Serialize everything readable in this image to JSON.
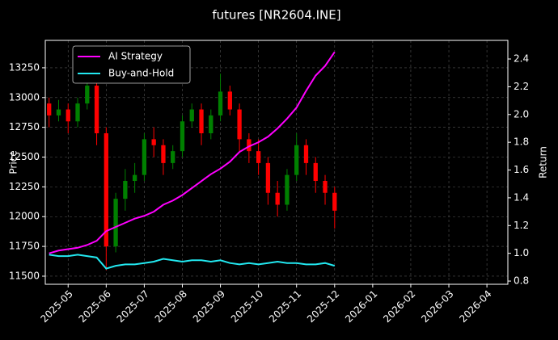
{
  "chart_data": {
    "type": "candlestick",
    "title": "futures [NR2604.INE]",
    "y_label": "Price",
    "y2_label": "Return",
    "background": "#000000",
    "grid": true,
    "legend": "upper left",
    "xlim": [
      -0.6,
      11.55
    ],
    "xticks": [
      {
        "value": 0,
        "label": "2025-05"
      },
      {
        "value": 1,
        "label": "2025-06"
      },
      {
        "value": 2,
        "label": "2025-07"
      },
      {
        "value": 3,
        "label": "2025-08"
      },
      {
        "value": 4,
        "label": "2025-09"
      },
      {
        "value": 5,
        "label": "2025-10"
      },
      {
        "value": 6,
        "label": "2025-11"
      },
      {
        "value": 7,
        "label": "2025-12"
      },
      {
        "value": 8,
        "label": "2026-01"
      },
      {
        "value": 9,
        "label": "2026-02"
      },
      {
        "value": 10,
        "label": "2026-03"
      },
      {
        "value": 11,
        "label": "2026-04"
      }
    ],
    "ylim": [
      11432,
      13480
    ],
    "yticks": [
      11500,
      11750,
      12000,
      12250,
      12500,
      12750,
      13000,
      13250
    ],
    "y2lim": [
      0.777,
      2.534
    ],
    "y2ticks": [
      0.8,
      {
        "value": 1,
        "label": "1.0"
      },
      1.2,
      1.4,
      1.6,
      1.8,
      {
        "value": 2,
        "label": "2.0"
      },
      2.2,
      2.4
    ],
    "x": [
      -0.5,
      -0.25,
      0,
      0.25,
      0.5,
      0.75,
      1,
      1.25,
      1.5,
      1.75,
      2,
      2.25,
      2.5,
      2.75,
      3,
      3.25,
      3.5,
      3.75,
      4,
      4.25,
      4.5,
      4.75,
      5,
      5.25,
      5.5,
      5.75,
      6,
      6.25,
      6.5,
      6.75,
      7
    ],
    "candles": {
      "up_color": "#008000",
      "down_color": "#ff0000",
      "open": [
        12950,
        12850,
        12900,
        12800,
        12950,
        13100,
        12700,
        11750,
        12150,
        12300,
        12350,
        12650,
        12600,
        12450,
        12550,
        12800,
        12900,
        12700,
        12850,
        13050,
        12900,
        12650,
        12550,
        12450,
        12200,
        12100,
        12350,
        12600,
        12450,
        12300,
        12200
      ],
      "high": [
        13000,
        12980,
        12950,
        13000,
        13200,
        13150,
        12750,
        12200,
        12400,
        12450,
        12700,
        12750,
        12650,
        12600,
        12850,
        12950,
        12950,
        12900,
        13200,
        13100,
        12950,
        12700,
        12650,
        12500,
        12300,
        12400,
        12700,
        12650,
        12500,
        12350,
        12250
      ],
      "low": [
        12750,
        12800,
        12700,
        12750,
        12900,
        12600,
        11550,
        11700,
        12050,
        12200,
        12300,
        12500,
        12350,
        12400,
        12500,
        12750,
        12600,
        12650,
        12800,
        12850,
        12550,
        12450,
        12350,
        12100,
        12000,
        12050,
        12300,
        12350,
        12200,
        12100,
        11900
      ],
      "close": [
        12850,
        12900,
        12800,
        12950,
        13100,
        12700,
        11750,
        12150,
        12300,
        12350,
        12650,
        12600,
        12450,
        12550,
        12800,
        12900,
        12700,
        12850,
        13050,
        12900,
        12650,
        12550,
        12450,
        12200,
        12100,
        12350,
        12600,
        12450,
        12300,
        12200,
        12050
      ]
    },
    "series": [
      {
        "name": "AI Strategy",
        "color": "#ff00ff",
        "axis": "y2",
        "values": [
          1.0,
          1.02,
          1.03,
          1.04,
          1.06,
          1.09,
          1.16,
          1.19,
          1.22,
          1.25,
          1.27,
          1.3,
          1.35,
          1.38,
          1.42,
          1.47,
          1.52,
          1.57,
          1.61,
          1.66,
          1.73,
          1.77,
          1.8,
          1.84,
          1.9,
          1.97,
          2.05,
          2.17,
          2.28,
          2.35,
          2.45
        ]
      },
      {
        "name": "Buy-and-Hold",
        "color": "#22e8f0",
        "axis": "y2",
        "values": [
          0.99,
          0.98,
          0.98,
          0.99,
          0.98,
          0.97,
          0.89,
          0.91,
          0.92,
          0.92,
          0.93,
          0.94,
          0.96,
          0.95,
          0.94,
          0.95,
          0.95,
          0.94,
          0.95,
          0.93,
          0.92,
          0.93,
          0.92,
          0.93,
          0.94,
          0.93,
          0.93,
          0.92,
          0.92,
          0.93,
          0.91
        ]
      }
    ]
  }
}
